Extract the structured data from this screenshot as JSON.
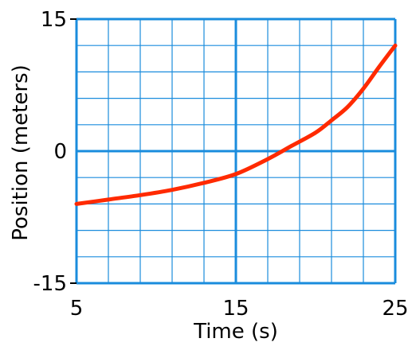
{
  "chart_data": {
    "type": "line",
    "title": "",
    "xlabel": "Time (s)",
    "ylabel": "Position (meters)",
    "xlim": [
      5,
      25
    ],
    "ylim": [
      -15,
      15
    ],
    "x_ticks": [
      5,
      15,
      25
    ],
    "y_ticks": [
      -15,
      0,
      15
    ],
    "x_tick_labels": [
      "5",
      "15",
      "25"
    ],
    "y_tick_labels": [
      "-15",
      "0",
      "15"
    ],
    "grid": true,
    "grid_minor_step_x": 2,
    "grid_minor_step_y": 3,
    "series": [
      {
        "color": "#ff2a00",
        "x": [
          5,
          7,
          9,
          11,
          13,
          15,
          17,
          18.5,
          20,
          21,
          22,
          23,
          24,
          25
        ],
        "y": [
          -6.0,
          -5.5,
          -5.0,
          -4.4,
          -3.6,
          -2.6,
          -0.9,
          0.6,
          2.1,
          3.5,
          5.0,
          7.1,
          9.6,
          12.0
        ]
      }
    ],
    "colors": {
      "grid": "#1a8cdd",
      "line": "#ff2a00",
      "text": "#000000"
    }
  }
}
